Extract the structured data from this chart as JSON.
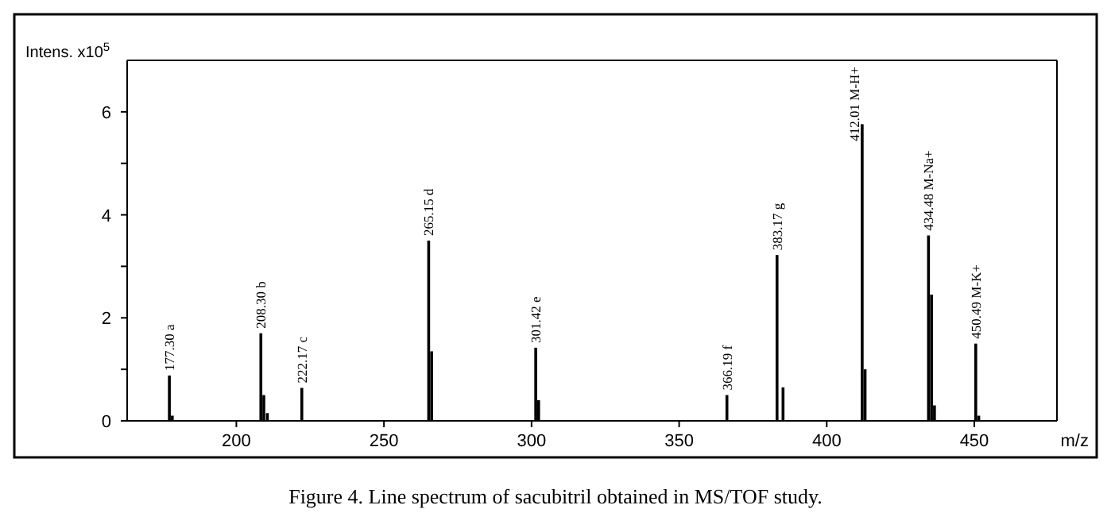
{
  "chart_data": {
    "type": "bar",
    "xlabel": "m/z",
    "ylabel": "Intens. x10$^{5}$",
    "x": [
      177.3,
      178.3,
      208.3,
      209.3,
      210.5,
      222.17,
      265.15,
      266.15,
      301.42,
      302.4,
      366.19,
      383.17,
      385.2,
      412.01,
      413.0,
      434.48,
      435.5,
      436.5,
      450.49,
      451.5
    ],
    "values": [
      0.88,
      0.1,
      1.7,
      0.5,
      0.15,
      0.64,
      3.5,
      1.35,
      1.42,
      0.4,
      0.5,
      3.22,
      0.65,
      5.76,
      1.0,
      3.6,
      2.45,
      0.3,
      1.5,
      0.1
    ],
    "color": "#000000",
    "xlim": [
      163,
      478
    ],
    "ylim": [
      0,
      7
    ],
    "xticks": [
      200,
      250,
      300,
      350,
      400,
      450
    ],
    "yticks": [
      0,
      {
        "value": 1,
        "label": null
      },
      2,
      {
        "value": 3,
        "label": null
      },
      4,
      {
        "value": 5,
        "label": null
      },
      6
    ],
    "annotations": [
      {
        "text": "177.30 a",
        "x": 177.3,
        "y": 0.88
      },
      {
        "text": "208.30 b",
        "x": 208.3,
        "y": 1.7
      },
      {
        "text": "222.17 c",
        "x": 222.17,
        "y": 0.64
      },
      {
        "text": "265.15 d",
        "x": 265.15,
        "y": 3.5
      },
      {
        "text": "301.42 e",
        "x": 301.42,
        "y": 1.42
      },
      {
        "text": "366.19 f",
        "x": 366.19,
        "y": 0.5
      },
      {
        "text": "383.17 g",
        "x": 383.17,
        "y": 3.22
      },
      {
        "text": "412.01 M-H+",
        "x": 412.01,
        "y": 5.76
      },
      {
        "text": "434.48 M-Na+",
        "x": 434.48,
        "y": 3.6
      },
      {
        "text": "450.49 M-K+",
        "x": 450.49,
        "y": 1.5
      },
      "Figure 4. Line spectrum of sacubitril obtained in MS/TOF study."
    ]
  }
}
